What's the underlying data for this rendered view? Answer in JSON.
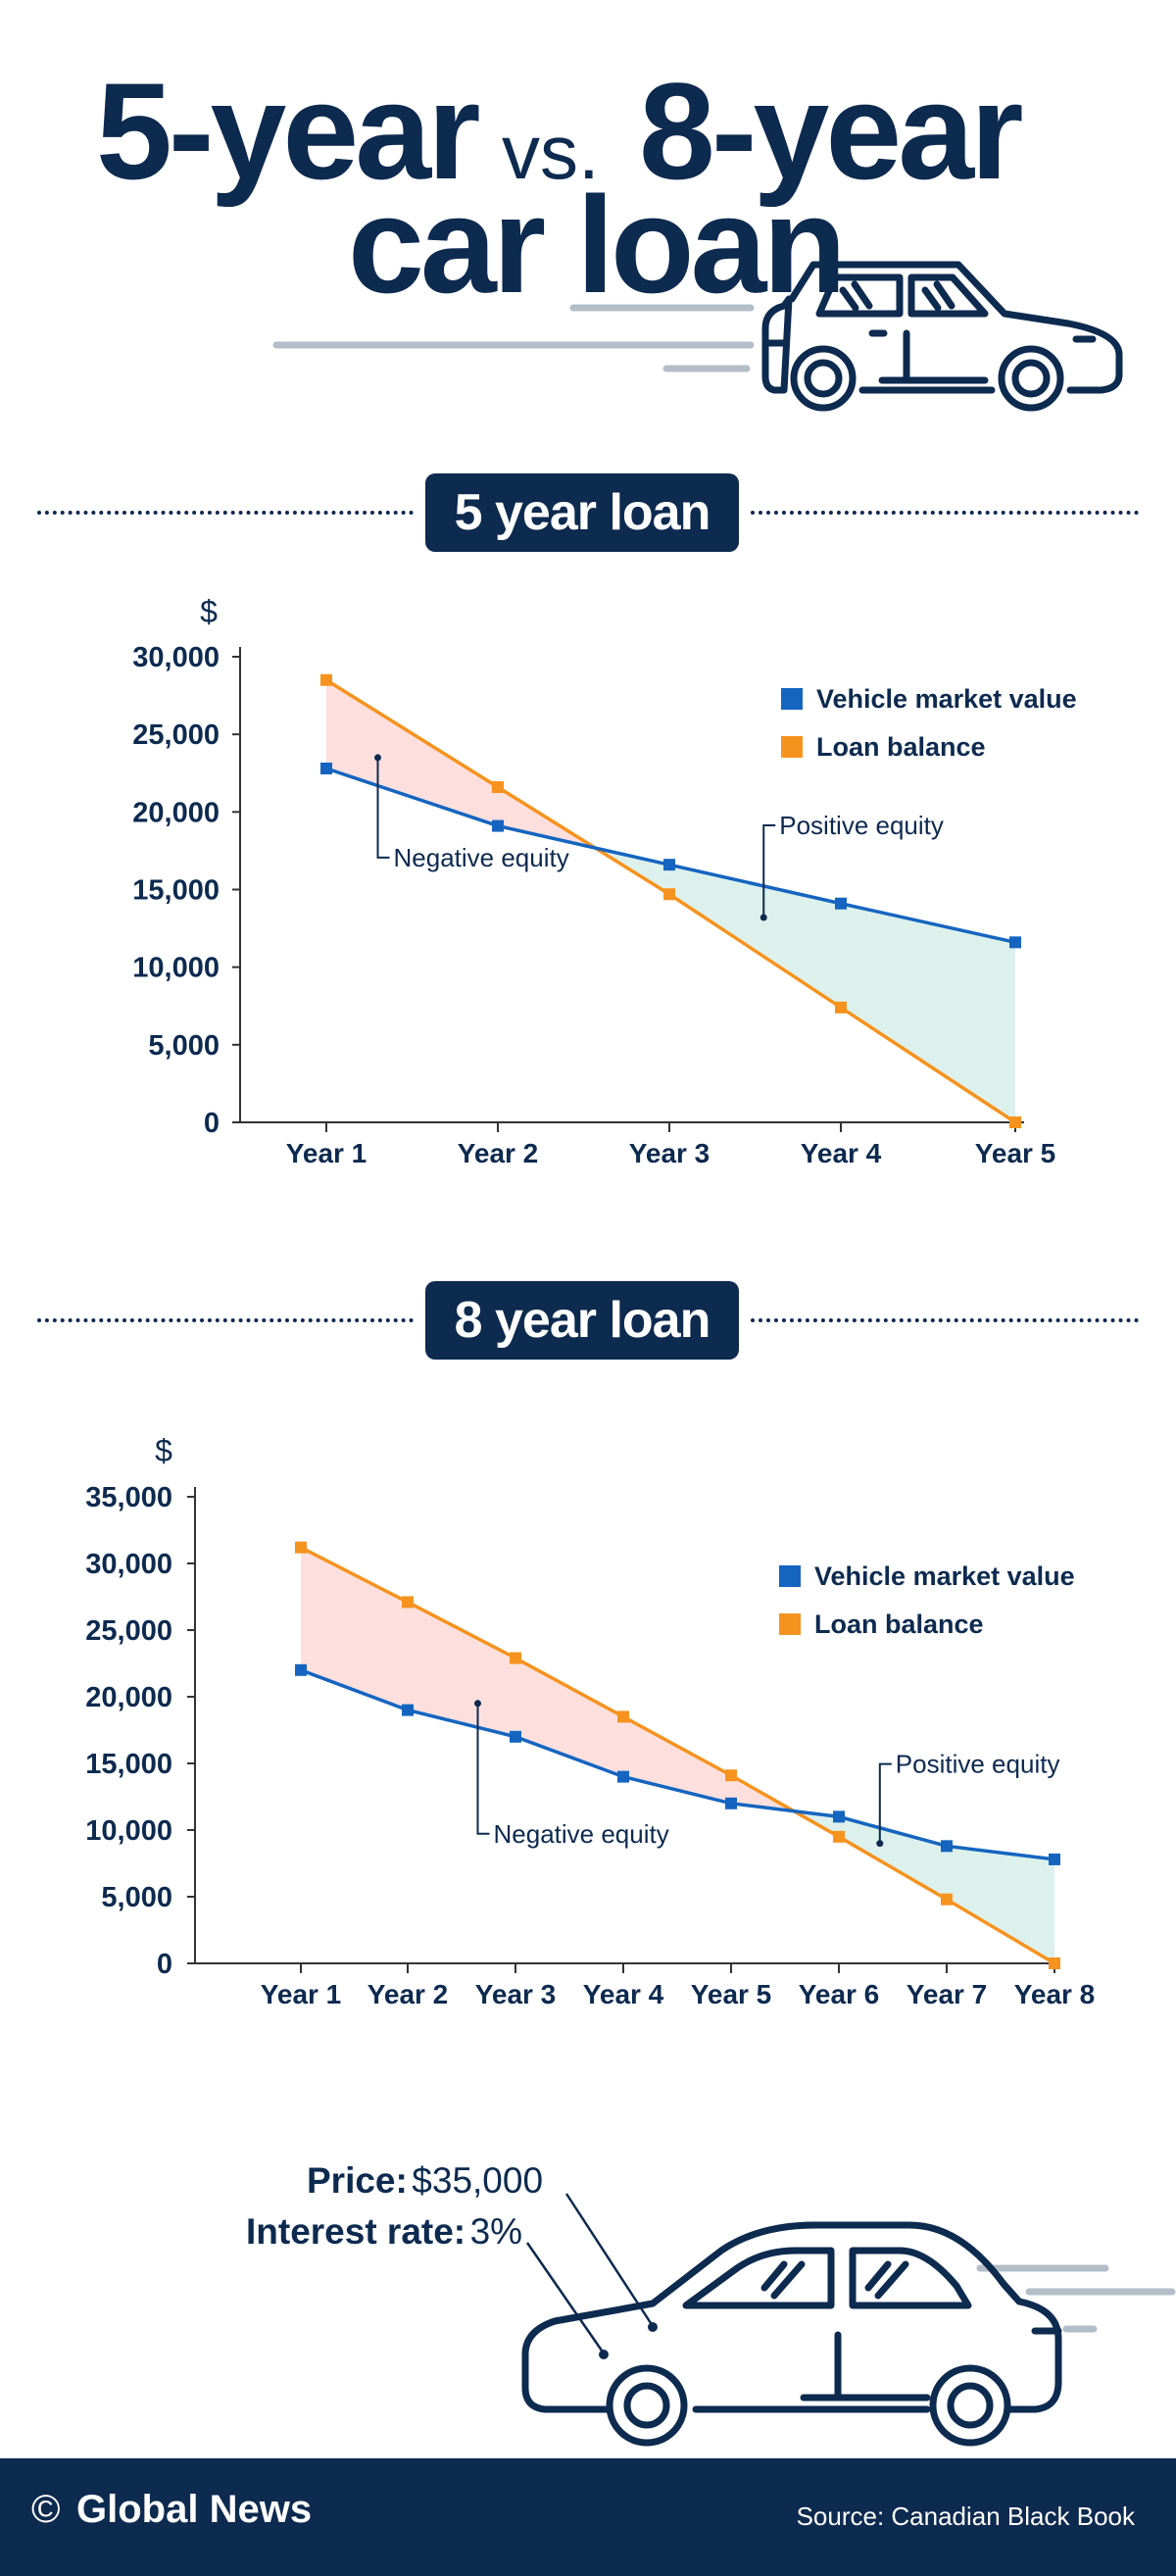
{
  "header": {
    "title_part1": "5-year",
    "title_vs": "vs.",
    "title_part2": "8-year",
    "title_line2": "car loan"
  },
  "colors": {
    "navy": "#0d2a4f",
    "market_value": "#1565c0",
    "loan_balance": "#f5931e",
    "negative_fill": "#fde0de",
    "positive_fill": "#ddf1ec",
    "speed_lines": "#b3bec9"
  },
  "sections": [
    {
      "label": "5 year loan"
    },
    {
      "label": "8 year loan"
    }
  ],
  "chart_data": [
    {
      "type": "line",
      "title": "5 year loan",
      "ylabel": "$",
      "xlabel": "",
      "categories": [
        "Year 1",
        "Year 2",
        "Year 3",
        "Year 4",
        "Year 5"
      ],
      "ylim": [
        0,
        30000
      ],
      "yticks": [
        0,
        5000,
        10000,
        15000,
        20000,
        25000,
        30000
      ],
      "ytick_labels": [
        "0",
        "5,000",
        "10,000",
        "15,000",
        "20,000",
        "25,000",
        "30,000"
      ],
      "series": [
        {
          "name": "Vehicle market value",
          "values": [
            22800,
            19100,
            16600,
            14100,
            11600
          ]
        },
        {
          "name": "Loan balance",
          "values": [
            28500,
            21600,
            14700,
            7400,
            0
          ]
        }
      ],
      "legend_position": "top-right",
      "grid": false,
      "annotations": [
        {
          "text": "Negative equity",
          "x": 1.3,
          "y": 23500
        },
        {
          "text": "Positive equity",
          "x": 3.55,
          "y": 13200
        }
      ]
    },
    {
      "type": "line",
      "title": "8 year loan",
      "ylabel": "$",
      "xlabel": "",
      "categories": [
        "Year 1",
        "Year 2",
        "Year 3",
        "Year 4",
        "Year 5",
        "Year 6",
        "Year 7",
        "Year 8"
      ],
      "ylim": [
        0,
        35000
      ],
      "yticks": [
        0,
        5000,
        10000,
        15000,
        20000,
        25000,
        30000,
        35000
      ],
      "ytick_labels": [
        "0",
        "5,000",
        "10,000",
        "15,000",
        "20,000",
        "25,000",
        "30,000",
        "35,000"
      ],
      "series": [
        {
          "name": "Vehicle market value",
          "values": [
            22000,
            19000,
            17000,
            14000,
            12000,
            11000,
            8800,
            7800
          ]
        },
        {
          "name": "Loan balance",
          "values": [
            31200,
            27100,
            22900,
            18500,
            14100,
            9500,
            4800,
            0
          ]
        }
      ],
      "legend_position": "top-right",
      "grid": false,
      "annotations": [
        {
          "text": "Negative equity",
          "x": 2.65,
          "y": 19500
        },
        {
          "text": "Positive equity",
          "x": 6.38,
          "y": 9000
        }
      ]
    }
  ],
  "car_info": {
    "price_label": "Price:",
    "price_value": "$35,000",
    "rate_label": "Interest rate:",
    "rate_value": "3%"
  },
  "footer": {
    "copyright_symbol": "©",
    "brand": "Global News",
    "source": "Source: Canadian Black Book"
  }
}
